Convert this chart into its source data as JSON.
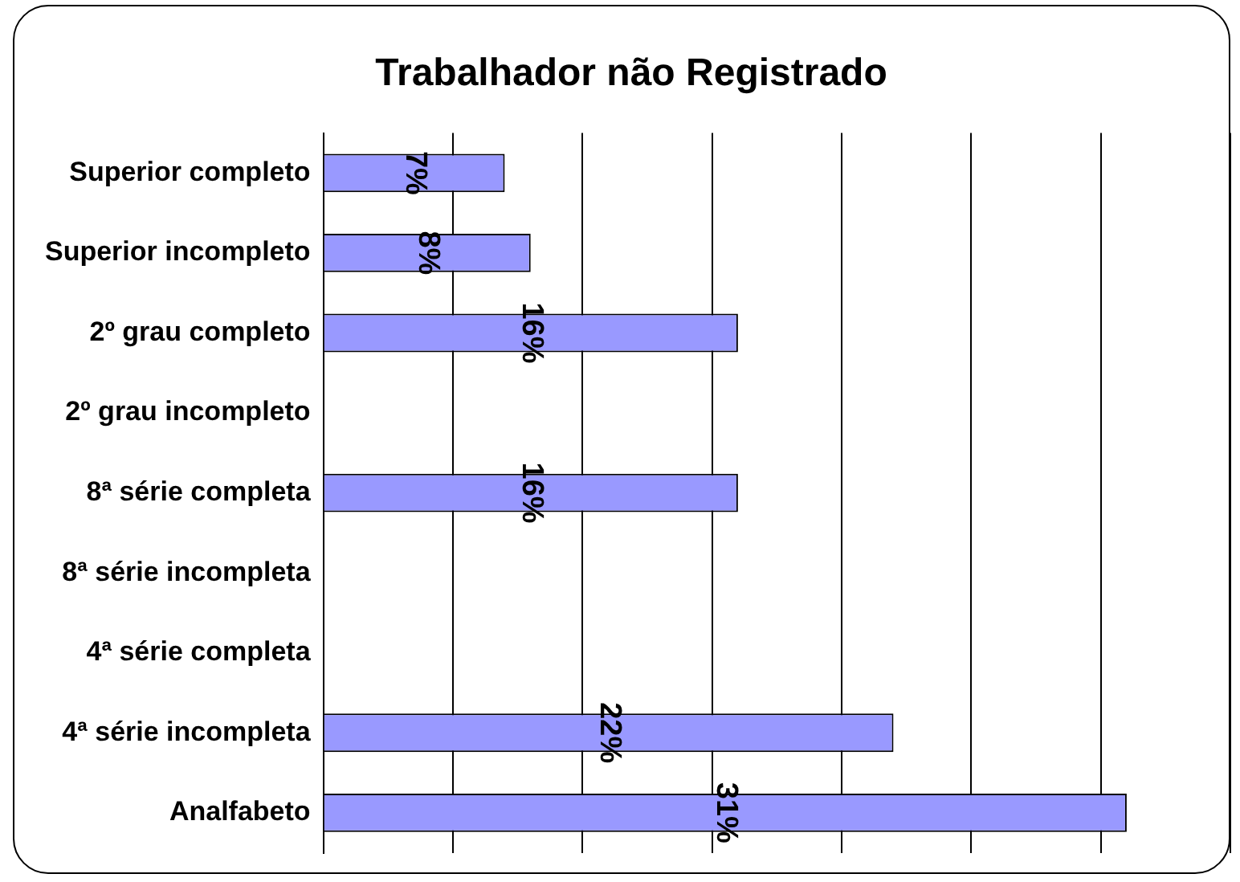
{
  "chart_data": {
    "type": "bar",
    "orientation": "horizontal",
    "title": "Trabalhador não Registrado",
    "categories": [
      "Superior completo",
      "Superior incompleto",
      "2º grau completo",
      "2º grau incompleto",
      "8ª série completa",
      "8ª série incompleta",
      "4ª série completa",
      "4ª série incompleta",
      "Analfabeto"
    ],
    "values": [
      7,
      8,
      16,
      null,
      16,
      null,
      null,
      22,
      31
    ],
    "value_labels": [
      "7%",
      "8%",
      "16%",
      null,
      "16%",
      null,
      null,
      "22%",
      "31%"
    ],
    "color": "#9999ff",
    "xlim": [
      0,
      35
    ],
    "xticks": [
      {
        "value": 0,
        "label": null
      },
      {
        "value": 5,
        "label": null
      },
      {
        "value": 10,
        "label": null
      },
      {
        "value": 15,
        "label": null
      },
      {
        "value": 20,
        "label": null
      },
      {
        "value": 25,
        "label": null
      },
      {
        "value": 30,
        "label": null
      },
      {
        "value": 35,
        "label": null
      }
    ],
    "tick_labels": "y",
    "grid": "x",
    "legend": false
  }
}
